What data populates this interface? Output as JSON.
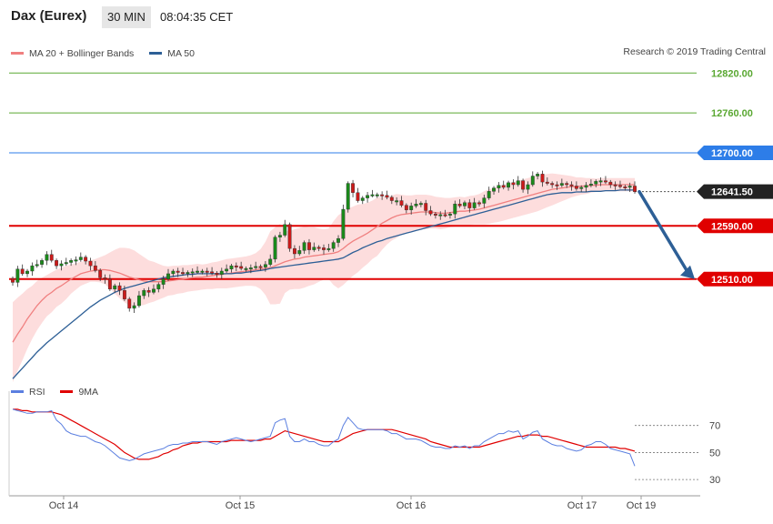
{
  "header": {
    "instrument": "Dax (Eurex)",
    "timeframe": "30 MIN",
    "time": "08:04:35 CET"
  },
  "legend": {
    "ma20_bb": "MA 20 + Bollinger Bands",
    "ma50": "MA 50",
    "credit": "Research © 2019 Trading Central"
  },
  "rsi_legend": {
    "rsi": "RSI",
    "ma9": "9MA"
  },
  "colors": {
    "band": "#fdd9d9",
    "ma20": "#f08080",
    "ma50": "#2d5f96",
    "up": "#1a8a1a",
    "down": "#cc1a1a",
    "blueLevel": "#2d7de8",
    "redLevel": "#e00000",
    "greenLevel": "#5aa832",
    "arrow": "#2d5f96",
    "rsi": "#5b7fe0",
    "rsiMa": "#e00000",
    "lastPrice": "#222222"
  },
  "chart_data": [
    {
      "type": "candlestick",
      "y_range": [
        12355,
        12845
      ],
      "levels": [
        {
          "value": 12820,
          "label": "12820.00",
          "kind": "green"
        },
        {
          "value": 12760,
          "label": "12760.00",
          "kind": "green"
        },
        {
          "value": 12700,
          "label": "12700.00",
          "kind": "blue"
        },
        {
          "value": 12641.5,
          "label": "12641.50",
          "kind": "last"
        },
        {
          "value": 12590,
          "label": "12590.00",
          "kind": "red"
        },
        {
          "value": 12510,
          "label": "12510.00",
          "kind": "red"
        }
      ],
      "x_labels": [
        "Oct 14",
        "Oct 15",
        "Oct 16",
        "Oct 17",
        "Oct 19"
      ],
      "close": [
        12505,
        12525,
        12518,
        12522,
        12530,
        12532,
        12538,
        12547,
        12538,
        12530,
        12533,
        12535,
        12538,
        12539,
        12543,
        12537,
        12530,
        12523,
        12512,
        12510,
        12495,
        12500,
        12493,
        12480,
        12466,
        12470,
        12485,
        12493,
        12490,
        12495,
        12502,
        12510,
        12518,
        12522,
        12520,
        12518,
        12520,
        12521,
        12522,
        12522,
        12521,
        12519,
        12517,
        12522,
        12525,
        12530,
        12529,
        12526,
        12526,
        12527,
        12529,
        12528,
        12532,
        12540,
        12573,
        12576,
        12592,
        12556,
        12548,
        12553,
        12565,
        12554,
        12558,
        12557,
        12554,
        12556,
        12565,
        12571,
        12615,
        12654,
        12640,
        12628,
        12632,
        12636,
        12637,
        12637,
        12636,
        12633,
        12628,
        12628,
        12621,
        12614,
        12620,
        12623,
        12624,
        12613,
        12608,
        12606,
        12607,
        12606,
        12608,
        12623,
        12620,
        12625,
        12617,
        12625,
        12624,
        12632,
        12642,
        12647,
        12651,
        12648,
        12655,
        12652,
        12658,
        12645,
        12652,
        12665,
        12668,
        12656,
        12654,
        12652,
        12651,
        12654,
        12652,
        12650,
        12646,
        12648,
        12651,
        12653,
        12657,
        12658,
        12656,
        12652,
        12651,
        12649,
        12648,
        12650,
        12641.5
      ],
      "ma20": [
        12415,
        12427,
        12438,
        12450,
        12460,
        12470,
        12478,
        12485,
        12490,
        12496,
        12500,
        12505,
        12510,
        12514,
        12518,
        12520,
        12522,
        12523,
        12524,
        12524,
        12523,
        12521,
        12519,
        12516,
        12513,
        12511,
        12509,
        12507,
        12506,
        12506,
        12506,
        12506,
        12507,
        12508,
        12509,
        12510,
        12511,
        12512,
        12513,
        12513,
        12514,
        12515,
        12516,
        12517,
        12518,
        12519,
        12520,
        12521,
        12522,
        12523,
        12524,
        12525,
        12526,
        12527,
        12530,
        12533,
        12536,
        12538,
        12540,
        12541,
        12543,
        12544,
        12545,
        12546,
        12547,
        12548,
        12549,
        12551,
        12556,
        12562,
        12567,
        12571,
        12575,
        12579,
        12584,
        12589,
        12594,
        12598,
        12602,
        12605,
        12607,
        12608,
        12609,
        12610,
        12611,
        12611,
        12611,
        12610,
        12609,
        12609,
        12610,
        12611,
        12612,
        12612,
        12613,
        12614,
        12615,
        12617,
        12619,
        12621,
        12623,
        12625,
        12627,
        12629,
        12631,
        12633,
        12635,
        12637,
        12639,
        12641,
        12643,
        12645,
        12646,
        12647,
        12648,
        12649,
        12649,
        12650,
        12650,
        12651,
        12651,
        12652,
        12652,
        12652,
        12652,
        12652,
        12652,
        12652,
        12652
      ],
      "ma50": [
        12360,
        12368,
        12376,
        12384,
        12392,
        12400,
        12407,
        12414,
        12420,
        12426,
        12432,
        12438,
        12444,
        12450,
        12456,
        12462,
        12468,
        12473,
        12478,
        12482,
        12486,
        12490,
        12493,
        12496,
        12498,
        12500,
        12502,
        12504,
        12506,
        12508,
        12510,
        12512,
        12513,
        12514,
        12515,
        12516,
        12517,
        12517,
        12518,
        12518,
        12518,
        12518,
        12518,
        12518,
        12518,
        12518,
        12519,
        12519,
        12520,
        12521,
        12522,
        12523,
        12524,
        12526,
        12527,
        12528,
        12529,
        12530,
        12531,
        12532,
        12533,
        12534,
        12535,
        12536,
        12537,
        12538,
        12539,
        12540,
        12542,
        12546,
        12550,
        12553,
        12557,
        12560,
        12563,
        12566,
        12568,
        12571,
        12573,
        12575,
        12577,
        12579,
        12581,
        12583,
        12585,
        12587,
        12589,
        12591,
        12593,
        12595,
        12597,
        12599,
        12601,
        12603,
        12605,
        12607,
        12609,
        12611,
        12613,
        12615,
        12617,
        12619,
        12621,
        12623,
        12625,
        12627,
        12629,
        12631,
        12633,
        12635,
        12637,
        12638,
        12639,
        12640,
        12640,
        12640,
        12641,
        12641,
        12641,
        12642,
        12642,
        12642,
        12643,
        12643,
        12643,
        12644,
        12644,
        12644,
        12644
      ],
      "bb_width": [
        60,
        55,
        50,
        45,
        40,
        37,
        34,
        31,
        30,
        28,
        27,
        25,
        22,
        20,
        18,
        17,
        16,
        17,
        19,
        22,
        27,
        33,
        38,
        41,
        43,
        42,
        39,
        36,
        32,
        30,
        27,
        24,
        22,
        22,
        21,
        21,
        20,
        20,
        20,
        19,
        19,
        20,
        20,
        21,
        22,
        22,
        22,
        22,
        22,
        23,
        25,
        30,
        40,
        55,
        58,
        60,
        47,
        44,
        45,
        46,
        46,
        44,
        43,
        40,
        38,
        38,
        48,
        55,
        55,
        54,
        52,
        51,
        48,
        46,
        44,
        44,
        40,
        36,
        34,
        33,
        30,
        28,
        27,
        27,
        26,
        26,
        25,
        24,
        24,
        23,
        22,
        22,
        22,
        21,
        22,
        22,
        23,
        25,
        26,
        26,
        27,
        27,
        27,
        27,
        27,
        27,
        27,
        27,
        27,
        26,
        25,
        24,
        22,
        20,
        18,
        16,
        14,
        13,
        12,
        11,
        10,
        10,
        10,
        10,
        10,
        10,
        10,
        10,
        10
      ]
    },
    {
      "type": "line",
      "name": "RSI",
      "y_range": [
        18,
        92
      ],
      "y_ticks": [
        30,
        50,
        70
      ],
      "rsi": [
        82,
        81,
        80,
        79,
        79,
        80,
        80,
        80,
        81,
        74,
        71,
        66,
        64,
        63,
        62,
        62,
        60,
        58,
        57,
        55,
        52,
        49,
        46,
        45,
        44,
        45,
        47,
        49,
        50,
        51,
        52,
        53,
        55,
        56,
        56,
        57,
        57,
        58,
        58,
        58,
        58,
        57,
        56,
        58,
        59,
        60,
        61,
        60,
        59,
        58,
        59,
        60,
        61,
        62,
        72,
        74,
        75,
        62,
        58,
        58,
        60,
        58,
        58,
        56,
        55,
        55,
        58,
        60,
        70,
        76,
        72,
        68,
        67,
        67,
        67,
        67,
        67,
        66,
        64,
        64,
        62,
        60,
        60,
        60,
        59,
        57,
        55,
        54,
        54,
        53,
        53,
        55,
        54,
        55,
        53,
        55,
        55,
        58,
        60,
        62,
        64,
        64,
        66,
        65,
        66,
        60,
        62,
        65,
        66,
        60,
        58,
        56,
        55,
        55,
        53,
        52,
        51,
        52,
        55,
        56,
        58,
        58,
        56,
        53,
        52,
        51,
        50,
        49,
        40
      ],
      "ma9": [
        82,
        82,
        81,
        81,
        80,
        80,
        80,
        80,
        80,
        79,
        78,
        76,
        74,
        72,
        70,
        68,
        66,
        64,
        62,
        60,
        58,
        56,
        53,
        50,
        48,
        46,
        45,
        45,
        45,
        46,
        47,
        49,
        50,
        52,
        53,
        55,
        56,
        57,
        57,
        58,
        58,
        58,
        58,
        58,
        58,
        59,
        59,
        59,
        59,
        59,
        59,
        59,
        60,
        60,
        62,
        64,
        66,
        65,
        64,
        63,
        62,
        61,
        60,
        59,
        58,
        58,
        58,
        58,
        60,
        62,
        64,
        65,
        66,
        67,
        67,
        67,
        67,
        67,
        67,
        66,
        65,
        64,
        63,
        62,
        61,
        60,
        58,
        57,
        56,
        55,
        54,
        54,
        54,
        54,
        54,
        54,
        54,
        55,
        56,
        57,
        58,
        59,
        60,
        61,
        62,
        62,
        63,
        63,
        63,
        62,
        62,
        61,
        60,
        59,
        58,
        57,
        56,
        55,
        54,
        54,
        54,
        54,
        54,
        54,
        54,
        53,
        53,
        52,
        51
      ]
    }
  ]
}
